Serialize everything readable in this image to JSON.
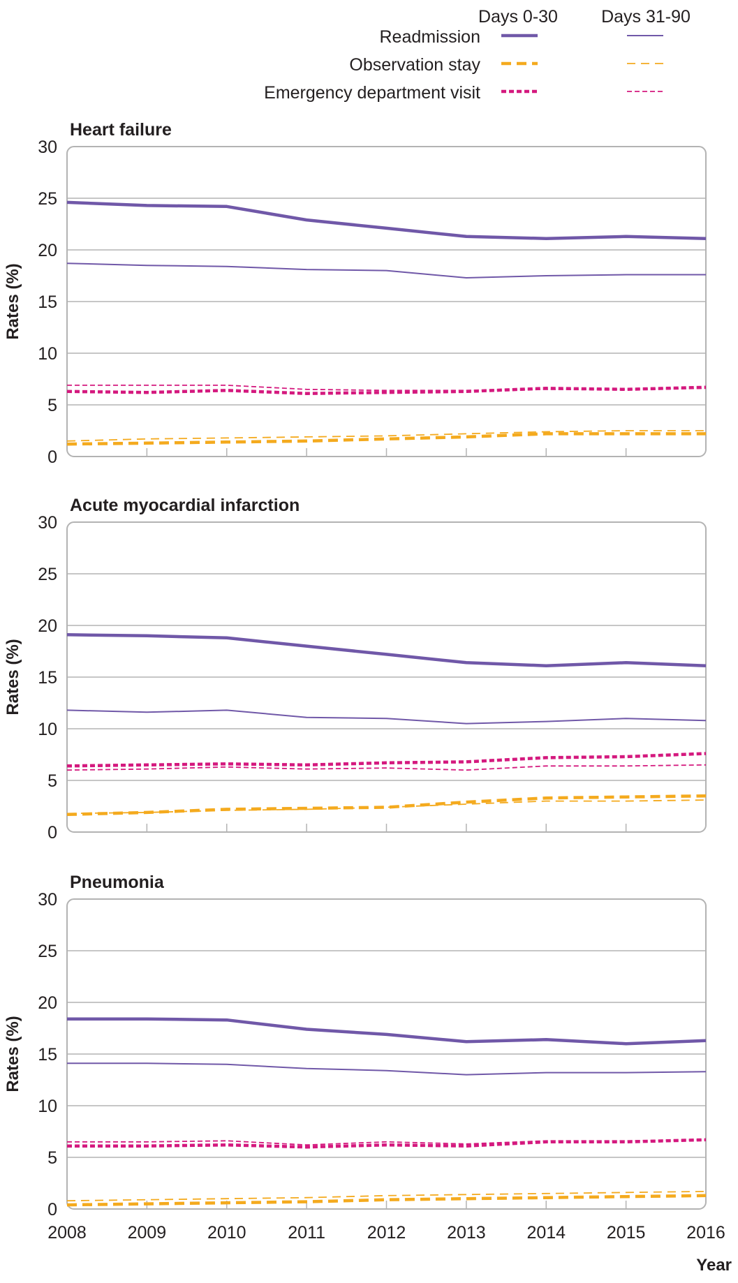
{
  "legend": {
    "col_early": "Days 0-30",
    "col_late": "Days 31-90",
    "entries": [
      {
        "key": "readmission",
        "label": "Readmission"
      },
      {
        "key": "observation",
        "label": "Observation stay"
      },
      {
        "key": "ed",
        "label": "Emergency department visit"
      }
    ]
  },
  "colors": {
    "readmission": "#7058a8",
    "observation": "#f4aa1e",
    "ed": "#d4197e",
    "grid": "#b3b3b3",
    "frame": "#b3b3b3"
  },
  "chart_data": [
    {
      "type": "line",
      "title": "Heart failure",
      "ylabel": "Rates (%)",
      "xlabel": "",
      "x": [
        2008,
        2009,
        2010,
        2011,
        2012,
        2013,
        2014,
        2015,
        2016
      ],
      "ylim": [
        0,
        30
      ],
      "yticks": [
        0,
        5,
        10,
        15,
        20,
        25,
        30
      ],
      "series": [
        {
          "name": "Readmission",
          "period": "Days 0-30",
          "values": [
            24.6,
            24.3,
            24.2,
            22.9,
            22.1,
            21.3,
            21.1,
            21.3,
            21.1
          ]
        },
        {
          "name": "Readmission",
          "period": "Days 31-90",
          "values": [
            18.7,
            18.5,
            18.4,
            18.1,
            18.0,
            17.3,
            17.5,
            17.6,
            17.6
          ]
        },
        {
          "name": "Observation stay",
          "period": "Days 0-30",
          "values": [
            1.2,
            1.3,
            1.4,
            1.5,
            1.7,
            1.9,
            2.2,
            2.2,
            2.2
          ]
        },
        {
          "name": "Observation stay",
          "period": "Days 31-90",
          "values": [
            1.5,
            1.7,
            1.8,
            1.9,
            2.0,
            2.2,
            2.4,
            2.5,
            2.5
          ]
        },
        {
          "name": "Emergency department visit",
          "period": "Days 0-30",
          "values": [
            6.3,
            6.2,
            6.4,
            6.1,
            6.2,
            6.3,
            6.6,
            6.5,
            6.7
          ]
        },
        {
          "name": "Emergency department visit",
          "period": "Days 31-90",
          "values": [
            6.9,
            6.9,
            6.9,
            6.5,
            6.4,
            6.4,
            6.5,
            6.5,
            6.6
          ]
        }
      ]
    },
    {
      "type": "line",
      "title": "Acute myocardial infarction",
      "ylabel": "Rates (%)",
      "xlabel": "",
      "x": [
        2008,
        2009,
        2010,
        2011,
        2012,
        2013,
        2014,
        2015,
        2016
      ],
      "ylim": [
        0,
        30
      ],
      "yticks": [
        0,
        5,
        10,
        15,
        20,
        25,
        30
      ],
      "series": [
        {
          "name": "Readmission",
          "period": "Days 0-30",
          "values": [
            19.1,
            19.0,
            18.8,
            18.0,
            17.2,
            16.4,
            16.1,
            16.4,
            16.1
          ]
        },
        {
          "name": "Readmission",
          "period": "Days 31-90",
          "values": [
            11.8,
            11.6,
            11.8,
            11.1,
            11.0,
            10.5,
            10.7,
            11.0,
            10.8
          ]
        },
        {
          "name": "Observation stay",
          "period": "Days 0-30",
          "values": [
            1.7,
            1.9,
            2.2,
            2.3,
            2.4,
            2.9,
            3.3,
            3.4,
            3.5
          ]
        },
        {
          "name": "Observation stay",
          "period": "Days 31-90",
          "values": [
            1.8,
            1.9,
            2.1,
            2.2,
            2.4,
            2.7,
            3.0,
            3.0,
            3.1
          ]
        },
        {
          "name": "Emergency department visit",
          "period": "Days 0-30",
          "values": [
            6.4,
            6.5,
            6.6,
            6.5,
            6.7,
            6.8,
            7.2,
            7.3,
            7.6
          ]
        },
        {
          "name": "Emergency department visit",
          "period": "Days 31-90",
          "values": [
            6.0,
            6.1,
            6.3,
            6.1,
            6.2,
            6.0,
            6.4,
            6.4,
            6.5
          ]
        }
      ]
    },
    {
      "type": "line",
      "title": "Pneumonia",
      "ylabel": "Rates (%)",
      "xlabel": "Year",
      "x": [
        2008,
        2009,
        2010,
        2011,
        2012,
        2013,
        2014,
        2015,
        2016
      ],
      "ylim": [
        0,
        30
      ],
      "yticks": [
        0,
        5,
        10,
        15,
        20,
        25,
        30
      ],
      "series": [
        {
          "name": "Readmission",
          "period": "Days 0-30",
          "values": [
            18.4,
            18.4,
            18.3,
            17.4,
            16.9,
            16.2,
            16.4,
            16.0,
            16.3
          ]
        },
        {
          "name": "Readmission",
          "period": "Days 31-90",
          "values": [
            14.1,
            14.1,
            14.0,
            13.6,
            13.4,
            13.0,
            13.2,
            13.2,
            13.3
          ]
        },
        {
          "name": "Observation stay",
          "period": "Days 0-30",
          "values": [
            0.4,
            0.5,
            0.6,
            0.7,
            0.9,
            1.0,
            1.1,
            1.2,
            1.3
          ]
        },
        {
          "name": "Observation stay",
          "period": "Days 31-90",
          "values": [
            0.8,
            0.9,
            1.0,
            1.1,
            1.3,
            1.4,
            1.5,
            1.6,
            1.7
          ]
        },
        {
          "name": "Emergency department visit",
          "period": "Days 0-30",
          "values": [
            6.1,
            6.1,
            6.2,
            6.0,
            6.2,
            6.1,
            6.5,
            6.5,
            6.7
          ]
        },
        {
          "name": "Emergency department visit",
          "period": "Days 31-90",
          "values": [
            6.5,
            6.5,
            6.6,
            6.2,
            6.5,
            6.3,
            6.6,
            6.6,
            6.7
          ]
        }
      ]
    }
  ]
}
